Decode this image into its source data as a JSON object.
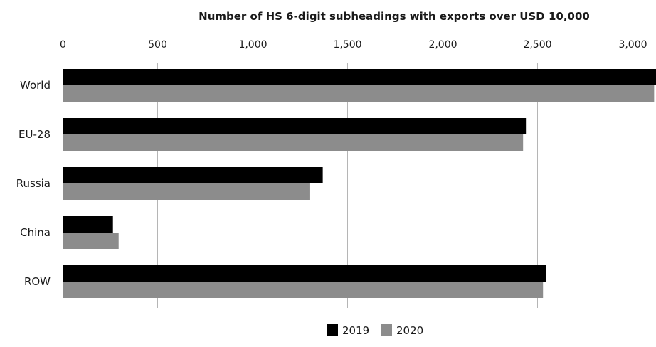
{
  "chart_data": {
    "type": "bar",
    "orientation": "horizontal",
    "title": "Number of HS 6-digit subheadings with exports over USD 10,000",
    "categories": [
      "World",
      "EU-28",
      "Russia",
      "China",
      "ROW"
    ],
    "series": [
      {
        "name": "2019",
        "color": "#000000",
        "values": [
          3130,
          2440,
          1370,
          265,
          2545
        ]
      },
      {
        "name": "2020",
        "color": "#8c8c8c",
        "values": [
          3115,
          2425,
          1300,
          295,
          2530
        ]
      }
    ],
    "xlim": [
      0,
      3125
    ],
    "x_ticks": [
      0,
      500,
      1000,
      1500,
      2000,
      2500,
      3000
    ],
    "x_tick_labels": [
      "0",
      "500",
      "1,000",
      "1,500",
      "2,000",
      "2,500",
      "3,000"
    ],
    "x_axis_position": "top",
    "grid": true,
    "legend_position": "bottom-center"
  }
}
